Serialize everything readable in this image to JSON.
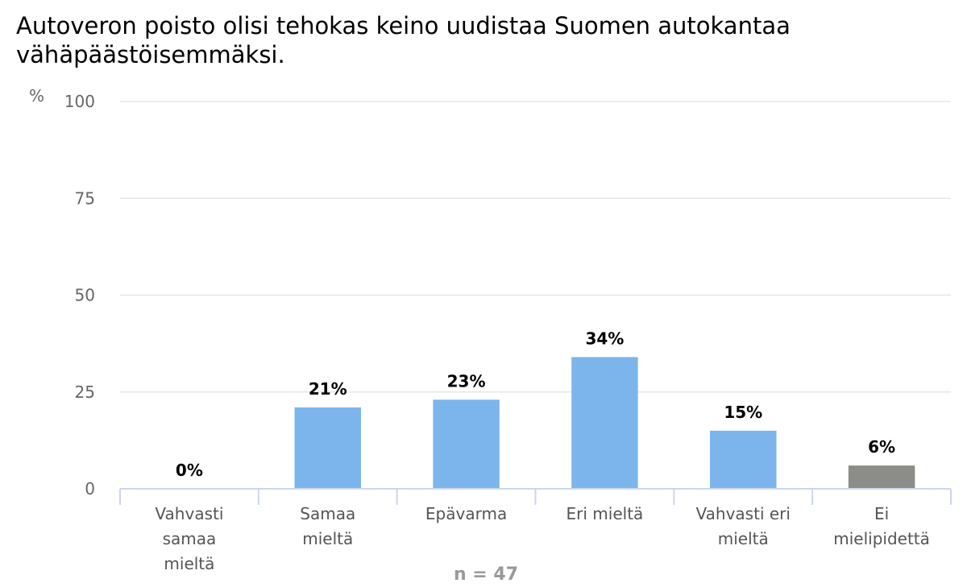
{
  "chart_data": {
    "type": "bar",
    "title": "Autoveron poisto olisi tehokas keino uudistaa Suomen autokantaa vähäpäästöisemmäksi.",
    "ylabel": "%",
    "xlabel": "",
    "ylim": [
      0,
      100
    ],
    "yticks": [
      0,
      25,
      50,
      75,
      100
    ],
    "grid": true,
    "categories": [
      [
        "Vahvasti",
        "samaa",
        "mieltä"
      ],
      [
        "Samaa",
        "mieltä"
      ],
      [
        "Epävarma"
      ],
      [
        "Eri mieltä"
      ],
      [
        "Vahvasti eri",
        "mieltä"
      ],
      [
        "Ei",
        "mielipidettä"
      ]
    ],
    "values": [
      0,
      21,
      23,
      34,
      15,
      6
    ],
    "data_labels": [
      "0%",
      "21%",
      "23%",
      "34%",
      "15%",
      "6%"
    ],
    "bar_colors": [
      "#7cb5ec",
      "#7cb5ec",
      "#7cb5ec",
      "#7cb5ec",
      "#7cb5ec",
      "#8c8c88"
    ],
    "note": "n = 47"
  }
}
